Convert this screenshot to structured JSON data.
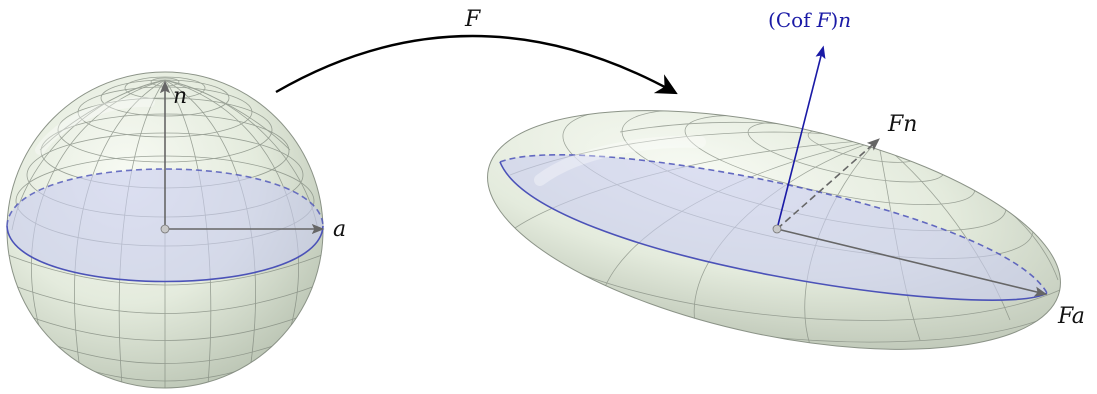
{
  "map_label": "F",
  "sphere": {
    "normal_label": "n",
    "axis_label": "a"
  },
  "ellipsoid": {
    "normal_label": "Fn",
    "axis_label": "Fa",
    "cofactor_label": {
      "open": "(",
      "cof": "Cof",
      "f": "F",
      "close": ")",
      "n": "n"
    }
  },
  "colors": {
    "surface_fill": "#e6ede0",
    "grid_line": "#7f877c",
    "plane_fill": "#c9cdf0",
    "plane_edge": "#4b52b8",
    "vector": "#666666",
    "cofactor_vector": "#1a1aa6",
    "arrow": "#000000"
  }
}
